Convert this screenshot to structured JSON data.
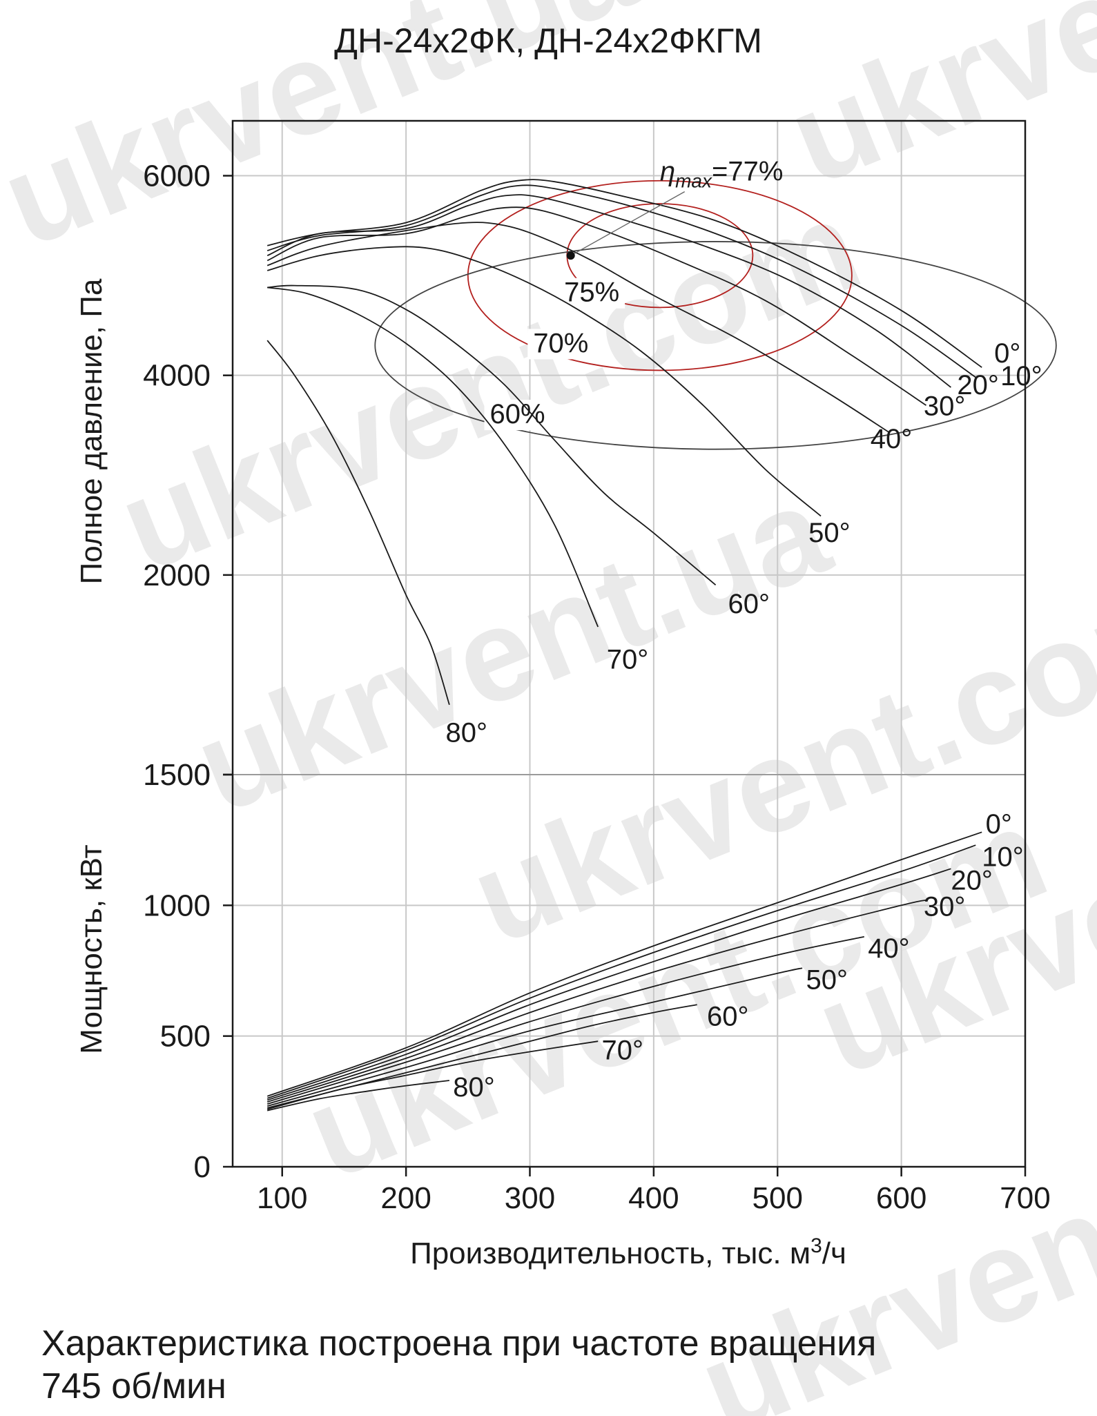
{
  "chart_data": [
    {
      "type": "line",
      "title": "ДН-24х2ФК, ДН-24х2ФКГМ",
      "ylabel": "Полное давление, Па",
      "xlim": [
        60,
        700
      ],
      "ylim": [
        0,
        6550
      ],
      "xticks": [
        "100",
        "200",
        "300",
        "400",
        "500",
        "600",
        "700"
      ],
      "yticks": [
        "0",
        "2000",
        "4000",
        "6000"
      ],
      "grid": true,
      "series": [
        {
          "name": "0°",
          "x": [
            88,
            130,
            200,
            260,
            290,
            320,
            380,
            450,
            520,
            600,
            665
          ],
          "y": [
            5300,
            5420,
            5530,
            5850,
            5950,
            5940,
            5780,
            5550,
            5180,
            4650,
            4080
          ]
        },
        {
          "name": "10°",
          "x": [
            88,
            130,
            200,
            260,
            290,
            320,
            380,
            450,
            520,
            600,
            660
          ],
          "y": [
            5250,
            5400,
            5500,
            5800,
            5900,
            5870,
            5700,
            5420,
            5050,
            4500,
            3980
          ]
        },
        {
          "name": "20°",
          "x": [
            88,
            130,
            200,
            250,
            280,
            310,
            370,
            440,
            510,
            580,
            640
          ],
          "y": [
            5200,
            5420,
            5470,
            5700,
            5800,
            5780,
            5580,
            5300,
            4950,
            4450,
            3880
          ]
        },
        {
          "name": "30°",
          "x": [
            88,
            130,
            200,
            250,
            280,
            310,
            360,
            420,
            490,
            560,
            620
          ],
          "y": [
            5150,
            5380,
            5420,
            5600,
            5680,
            5650,
            5450,
            5150,
            4750,
            4200,
            3700
          ]
        },
        {
          "name": "40°",
          "x": [
            88,
            130,
            200,
            250,
            280,
            310,
            350,
            400,
            470,
            540,
            590
          ],
          "y": [
            5100,
            5290,
            5450,
            5530,
            5500,
            5380,
            5150,
            4800,
            4350,
            3830,
            3430
          ]
        },
        {
          "name": "50°",
          "x": [
            88,
            130,
            180,
            220,
            260,
            300,
            340,
            390,
            440,
            490,
            535
          ],
          "y": [
            5050,
            5200,
            5280,
            5270,
            5130,
            4920,
            4650,
            4240,
            3700,
            3060,
            2590
          ]
        },
        {
          "name": "60°",
          "x": [
            88,
            110,
            160,
            200,
            240,
            280,
            320,
            360,
            400,
            450
          ],
          "y": [
            4880,
            4900,
            4860,
            4660,
            4320,
            3900,
            3350,
            2820,
            2420,
            1900
          ]
        },
        {
          "name": "70°",
          "x": [
            88,
            120,
            160,
            200,
            240,
            280,
            320,
            355
          ],
          "y": [
            4880,
            4820,
            4620,
            4320,
            3900,
            3300,
            2500,
            1480
          ]
        },
        {
          "name": "80°",
          "x": [
            88,
            110,
            140,
            170,
            200,
            220,
            235
          ],
          "y": [
            4350,
            4000,
            3400,
            2650,
            1800,
            1300,
            700
          ]
        }
      ],
      "efficiency_contours": [
        {
          "label": "75%",
          "cx": 405,
          "cy": 5200,
          "rx": 75,
          "ry": 520,
          "color": "#b3201e"
        },
        {
          "label": "70%",
          "cx": 405,
          "cy": 5000,
          "rx": 155,
          "ry": 950,
          "color": "#b3201e"
        },
        {
          "label": "60%",
          "cx": 450,
          "cy": 4300,
          "rx": 275,
          "ry": 1040,
          "color": "#444444"
        }
      ],
      "annotations": [
        {
          "text_pre": "η",
          "text_sub": "max",
          "text_post": "=77%",
          "x": 333,
          "y": 5200
        }
      ]
    },
    {
      "type": "line",
      "ylabel": "Мощность, кВт",
      "xlabel_pre": "Производительность, тыс. м",
      "xlabel_sup": "3",
      "xlabel_post": "/ч",
      "xlim": [
        60,
        700
      ],
      "ylim": [
        0,
        1500
      ],
      "xticks": [
        "100",
        "200",
        "300",
        "400",
        "500",
        "600",
        "700"
      ],
      "yticks": [
        "0",
        "500",
        "1000",
        "1500"
      ],
      "grid": true,
      "series": [
        {
          "name": "0°",
          "x": [
            88,
            200,
            300,
            400,
            500,
            600,
            665
          ],
          "y": [
            270,
            455,
            665,
            845,
            1010,
            1175,
            1280
          ]
        },
        {
          "name": "10°",
          "x": [
            88,
            200,
            300,
            400,
            500,
            600,
            660
          ],
          "y": [
            262,
            445,
            645,
            820,
            980,
            1130,
            1230
          ]
        },
        {
          "name": "20°",
          "x": [
            88,
            200,
            300,
            400,
            500,
            600,
            640
          ],
          "y": [
            255,
            430,
            620,
            785,
            940,
            1080,
            1140
          ]
        },
        {
          "name": "30°",
          "x": [
            88,
            200,
            300,
            400,
            500,
            600,
            620
          ],
          "y": [
            248,
            415,
            590,
            745,
            880,
            1000,
            1020
          ]
        },
        {
          "name": "40°",
          "x": [
            88,
            200,
            300,
            400,
            500,
            570
          ],
          "y": [
            240,
            400,
            555,
            690,
            810,
            880
          ]
        },
        {
          "name": "50°",
          "x": [
            88,
            200,
            300,
            400,
            500,
            520
          ],
          "y": [
            232,
            380,
            520,
            630,
            740,
            760
          ]
        },
        {
          "name": "60°",
          "x": [
            88,
            200,
            300,
            350,
            400,
            435
          ],
          "y": [
            225,
            360,
            480,
            540,
            590,
            620
          ]
        },
        {
          "name": "70°",
          "x": [
            88,
            150,
            200,
            250,
            300,
            355
          ],
          "y": [
            220,
            300,
            350,
            400,
            440,
            480
          ]
        },
        {
          "name": "80°",
          "x": [
            88,
            130,
            170,
            200,
            235
          ],
          "y": [
            215,
            260,
            290,
            310,
            330
          ]
        }
      ]
    }
  ],
  "caption_line1": "Характеристика построена при частоте вращения",
  "caption_line2": "745 об/мин",
  "watermark_text": "ukrvent.com",
  "watermark_text_alt": "ukrvent.ua",
  "colors": {
    "curve": "#1a1a1a",
    "grid": "#c8c8c8",
    "efficiency": "#b3201e",
    "watermark": "#d9d9d9"
  }
}
